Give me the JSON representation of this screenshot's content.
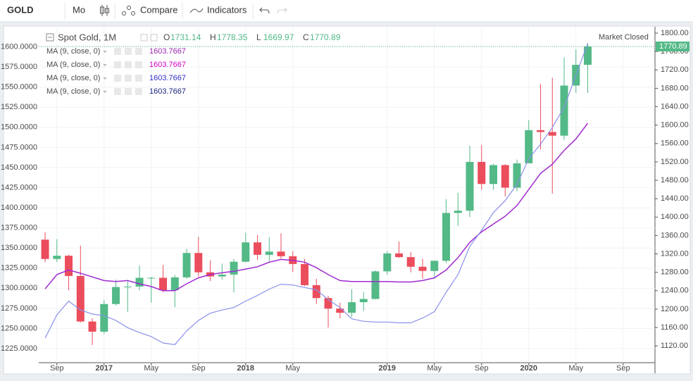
{
  "toolbar": {
    "symbol": "GOLD",
    "interval": "Mo",
    "compare": "Compare",
    "indicators": "Indicators"
  },
  "chart_data": {
    "type": "candlestick",
    "title": "Spot Gold, 1M",
    "status": "Market Closed",
    "ohlc_keys": [
      "O",
      "H",
      "L",
      "C"
    ],
    "indicators": [
      {
        "name": "MA (9, close, 0)",
        "value_label": "1603.7667",
        "color": "#9c27b0"
      },
      {
        "name": "MA (9, close, 0)",
        "value_label": "1603.7667",
        "color": "#d500c8"
      },
      {
        "name": "MA (9, close, 0)",
        "value_label": "1603.7667",
        "color": "#3030c8"
      },
      {
        "name": "MA (9, close, 0)",
        "value_label": "1603.7667",
        "color": "#1a237e"
      }
    ],
    "open": [
      1351,
      1309,
      1316,
      1272,
      1173,
      1151,
      1211,
      1248,
      1249,
      1268,
      1268,
      1241,
      1269,
      1322,
      1280,
      1271,
      1275,
      1303,
      1345,
      1318,
      1325,
      1315,
      1298,
      1252,
      1224,
      1201,
      1192,
      1215,
      1222,
      1282,
      1321,
      1313,
      1292,
      1283,
      1305,
      1409,
      1414,
      1520,
      1472,
      1513,
      1464,
      1517,
      1589,
      1585,
      1577,
      1686,
      1731.14
    ],
    "high": [
      1367,
      1352,
      1318,
      1338,
      1180,
      1220,
      1264,
      1262,
      1295,
      1270,
      1296,
      1274,
      1331,
      1357,
      1306,
      1299,
      1309,
      1366,
      1361,
      1356,
      1365,
      1326,
      1309,
      1266,
      1229,
      1214,
      1243,
      1237,
      1284,
      1326,
      1347,
      1324,
      1310,
      1306,
      1439,
      1453,
      1555,
      1557,
      1516,
      1515,
      1525,
      1611,
      1689,
      1703,
      1747,
      1765,
      1778.35
    ],
    "low": [
      1302,
      1302,
      1241,
      1171,
      1122,
      1146,
      1208,
      1194,
      1241,
      1214,
      1237,
      1204,
      1266,
      1271,
      1261,
      1264,
      1236,
      1302,
      1307,
      1303,
      1310,
      1281,
      1250,
      1211,
      1160,
      1180,
      1183,
      1196,
      1221,
      1275,
      1311,
      1280,
      1266,
      1266,
      1300,
      1381,
      1400,
      1459,
      1459,
      1445,
      1456,
      1517,
      1547,
      1451,
      1568,
      1670,
      1669.97
    ],
    "close": [
      1309,
      1316,
      1272,
      1173,
      1151,
      1211,
      1248,
      1249,
      1268,
      1268,
      1241,
      1269,
      1322,
      1280,
      1271,
      1275,
      1303,
      1345,
      1318,
      1325,
      1315,
      1298,
      1252,
      1224,
      1201,
      1192,
      1215,
      1222,
      1282,
      1321,
      1313,
      1292,
      1283,
      1305,
      1409,
      1414,
      1520,
      1472,
      1513,
      1464,
      1517,
      1589,
      1585,
      1577,
      1686,
      1731,
      1770.89
    ],
    "last_label": "1770.89",
    "up_color": "#53b987",
    "down_color": "#eb4d5c",
    "series": [
      {
        "color": "#a02ad0",
        "axis": "y2",
        "values": [
          1244,
          1275,
          1285,
          1278,
          1270,
          1262,
          1260,
          1262,
          1255,
          1249,
          1240,
          1240,
          1255,
          1268,
          1275,
          1279,
          1282,
          1287,
          1292,
          1302,
          1308,
          1306,
          1302,
          1290,
          1275,
          1262,
          1260,
          1260,
          1260,
          1260,
          1259,
          1259,
          1262,
          1268,
          1285,
          1312,
          1345,
          1368,
          1385,
          1402,
          1425,
          1460,
          1495,
          1515,
          1545,
          1570,
          1604
        ]
      },
      {
        "color": "#8a90ea",
        "axis": "y",
        "values": [
          1238,
          1267,
          1284,
          1273,
          1268,
          1266,
          1260,
          1251,
          1245,
          1240,
          1232,
          1230,
          1247,
          1260,
          1269,
          1273,
          1276,
          1284,
          1291,
          1299,
          1305,
          1304,
          1301,
          1298,
          1286,
          1276,
          1262,
          1259,
          1258,
          1258,
          1257,
          1257,
          1263,
          1271,
          1295,
          1317,
          1352,
          1372,
          1394,
          1409,
          1429,
          1461,
          1479,
          1500,
          1525,
          1565,
          1604
        ]
      }
    ],
    "xlim": [
      -0.54,
      51.7
    ],
    "xticks": [
      {
        "value": 1,
        "label": "Sep"
      },
      {
        "value": 5,
        "label": "2017"
      },
      {
        "value": 9,
        "label": "May"
      },
      {
        "value": 13,
        "label": "Sep"
      },
      {
        "value": 17,
        "label": "2018"
      },
      {
        "value": 21,
        "label": "May"
      },
      {
        "value": 29,
        "label": "2019"
      },
      {
        "value": 33,
        "label": "May"
      },
      {
        "value": 37,
        "label": "Sep"
      },
      {
        "value": 41,
        "label": "2020"
      },
      {
        "value": 45,
        "label": "May"
      },
      {
        "value": 49,
        "label": "Sep"
      }
    ],
    "ylim": [
      1207.5,
      1625
    ],
    "yticks": [
      {
        "value": 1225,
        "label": "1225.0000"
      },
      {
        "value": 1250,
        "label": "1250.0000"
      },
      {
        "value": 1275,
        "label": "1275.0000"
      },
      {
        "value": 1300,
        "label": "1300.0000"
      },
      {
        "value": 1325,
        "label": "1325.0000"
      },
      {
        "value": 1350,
        "label": "1350.0000"
      },
      {
        "value": 1375,
        "label": "1375.0000"
      },
      {
        "value": 1400,
        "label": "1400.0000"
      },
      {
        "value": 1425,
        "label": "1425.0000"
      },
      {
        "value": 1450,
        "label": "1450.0000"
      },
      {
        "value": 1475,
        "label": "1475.0000"
      },
      {
        "value": 1500,
        "label": "1500.0000"
      },
      {
        "value": 1525,
        "label": "1525.0000"
      },
      {
        "value": 1550,
        "label": "1550.0000"
      },
      {
        "value": 1575,
        "label": "1575.0000"
      },
      {
        "value": 1600,
        "label": "1600.0000"
      }
    ],
    "y2lim": [
      1083.5,
      1813.8
    ],
    "y2ticks": [
      {
        "value": 1120,
        "label": "1120.00"
      },
      {
        "value": 1160,
        "label": "1160.00"
      },
      {
        "value": 1200,
        "label": "1200.00"
      },
      {
        "value": 1240,
        "label": "1240.00"
      },
      {
        "value": 1280,
        "label": "1280.00"
      },
      {
        "value": 1320,
        "label": "1320.00"
      },
      {
        "value": 1360,
        "label": "1360.00"
      },
      {
        "value": 1400,
        "label": "1400.00"
      },
      {
        "value": 1440,
        "label": "1440.00"
      },
      {
        "value": 1480,
        "label": "1480.00"
      },
      {
        "value": 1520,
        "label": "1520.00"
      },
      {
        "value": 1560,
        "label": "1560.00"
      },
      {
        "value": 1600,
        "label": "1600.00"
      },
      {
        "value": 1640,
        "label": "1640.00"
      },
      {
        "value": 1680,
        "label": "1680.00"
      },
      {
        "value": 1720,
        "label": "1720.00"
      },
      {
        "value": 1760,
        "label": "1760.00"
      },
      {
        "value": 1800,
        "label": "1800.00"
      }
    ],
    "grid": true
  }
}
